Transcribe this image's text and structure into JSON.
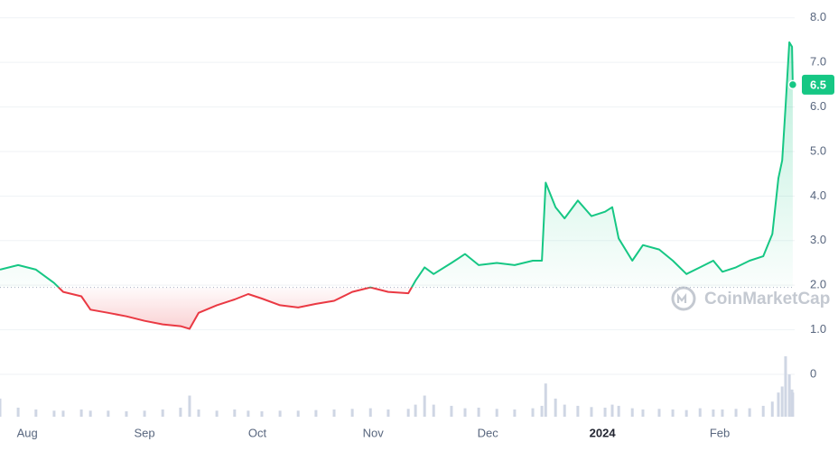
{
  "chart_data": {
    "type": "line",
    "x": [
      0,
      4.8,
      9.5,
      14.3,
      16.7,
      21.5,
      23.9,
      28.6,
      33.4,
      38.2,
      43,
      47.7,
      50.1,
      52.5,
      57.3,
      62,
      65.6,
      69.2,
      74,
      78.8,
      83.5,
      88.3,
      93.1,
      97.9,
      102.6,
      107.9,
      109.8,
      112.2,
      114.6,
      119.3,
      122.9,
      126.5,
      131.3,
      136,
      140.8,
      143.2,
      144.2,
      146.8,
      149.2,
      152.7,
      156.3,
      159.9,
      161.8,
      163.5,
      167.1,
      169.9,
      174.2,
      177.8,
      181.4,
      185,
      188.5,
      190.9,
      194.5,
      198.1,
      201.7,
      204.1,
      205.7,
      206.7,
      207.6,
      208.6,
      209.3,
      209.5
    ],
    "series": [
      {
        "name": "Price",
        "values": [
          2.35,
          2.45,
          2.35,
          2.05,
          1.85,
          1.75,
          1.45,
          1.38,
          1.3,
          1.2,
          1.12,
          1.08,
          1.02,
          1.38,
          1.55,
          1.68,
          1.8,
          1.7,
          1.55,
          1.5,
          1.58,
          1.65,
          1.85,
          1.95,
          1.85,
          1.82,
          2.1,
          2.4,
          2.25,
          2.5,
          2.7,
          2.45,
          2.5,
          2.45,
          2.55,
          2.55,
          4.3,
          3.75,
          3.5,
          3.9,
          3.55,
          3.65,
          3.75,
          3.05,
          2.55,
          2.9,
          2.8,
          2.55,
          2.25,
          2.4,
          2.55,
          2.3,
          2.4,
          2.55,
          2.65,
          3.15,
          4.4,
          4.8,
          6.0,
          7.45,
          7.35,
          6.5
        ]
      },
      {
        "name": "Volume",
        "color": "#cfd6e4",
        "values": [
          30,
          15,
          12,
          10,
          10,
          12,
          10,
          10,
          9,
          10,
          12,
          15,
          35,
          12,
          10,
          12,
          10,
          9,
          10,
          10,
          11,
          12,
          13,
          14,
          12,
          13,
          20,
          35,
          20,
          18,
          14,
          15,
          13,
          12,
          14,
          18,
          55,
          30,
          20,
          18,
          16,
          15,
          20,
          18,
          14,
          12,
          13,
          12,
          11,
          14,
          12,
          12,
          13,
          14,
          18,
          25,
          40,
          50,
          100,
          70,
          45,
          40
        ]
      }
    ],
    "baseline": 1.95,
    "up_color": "#16c784",
    "down_color": "#ea3943",
    "xlim": [
      0,
      210
    ],
    "ylim": [
      -1.62,
      8.4
    ],
    "vlim": [
      0,
      100
    ],
    "yticks": [
      {
        "value": 8,
        "label": "8.0"
      },
      {
        "value": 7,
        "label": "7.0"
      },
      {
        "value": 6,
        "label": "6.0"
      },
      {
        "value": 5,
        "label": "5.0"
      },
      {
        "value": 4,
        "label": "4.0"
      },
      {
        "value": 3,
        "label": "3.0"
      },
      {
        "value": 2,
        "label": "2.0"
      },
      {
        "value": 1,
        "label": "1.0"
      },
      0
    ],
    "xticks": [
      {
        "value": 7.2,
        "label": "Aug"
      },
      {
        "value": 38.2,
        "label": "Sep"
      },
      {
        "value": 68,
        "label": "Oct"
      },
      {
        "value": 98.6,
        "label": "Nov"
      },
      {
        "value": 128.9,
        "label": "Dec"
      },
      {
        "value": 159.2,
        "label": "2024",
        "bold": true
      },
      {
        "value": 190.2,
        "label": "Feb"
      }
    ],
    "grid": true,
    "watermark": "CoinMarketCap"
  }
}
